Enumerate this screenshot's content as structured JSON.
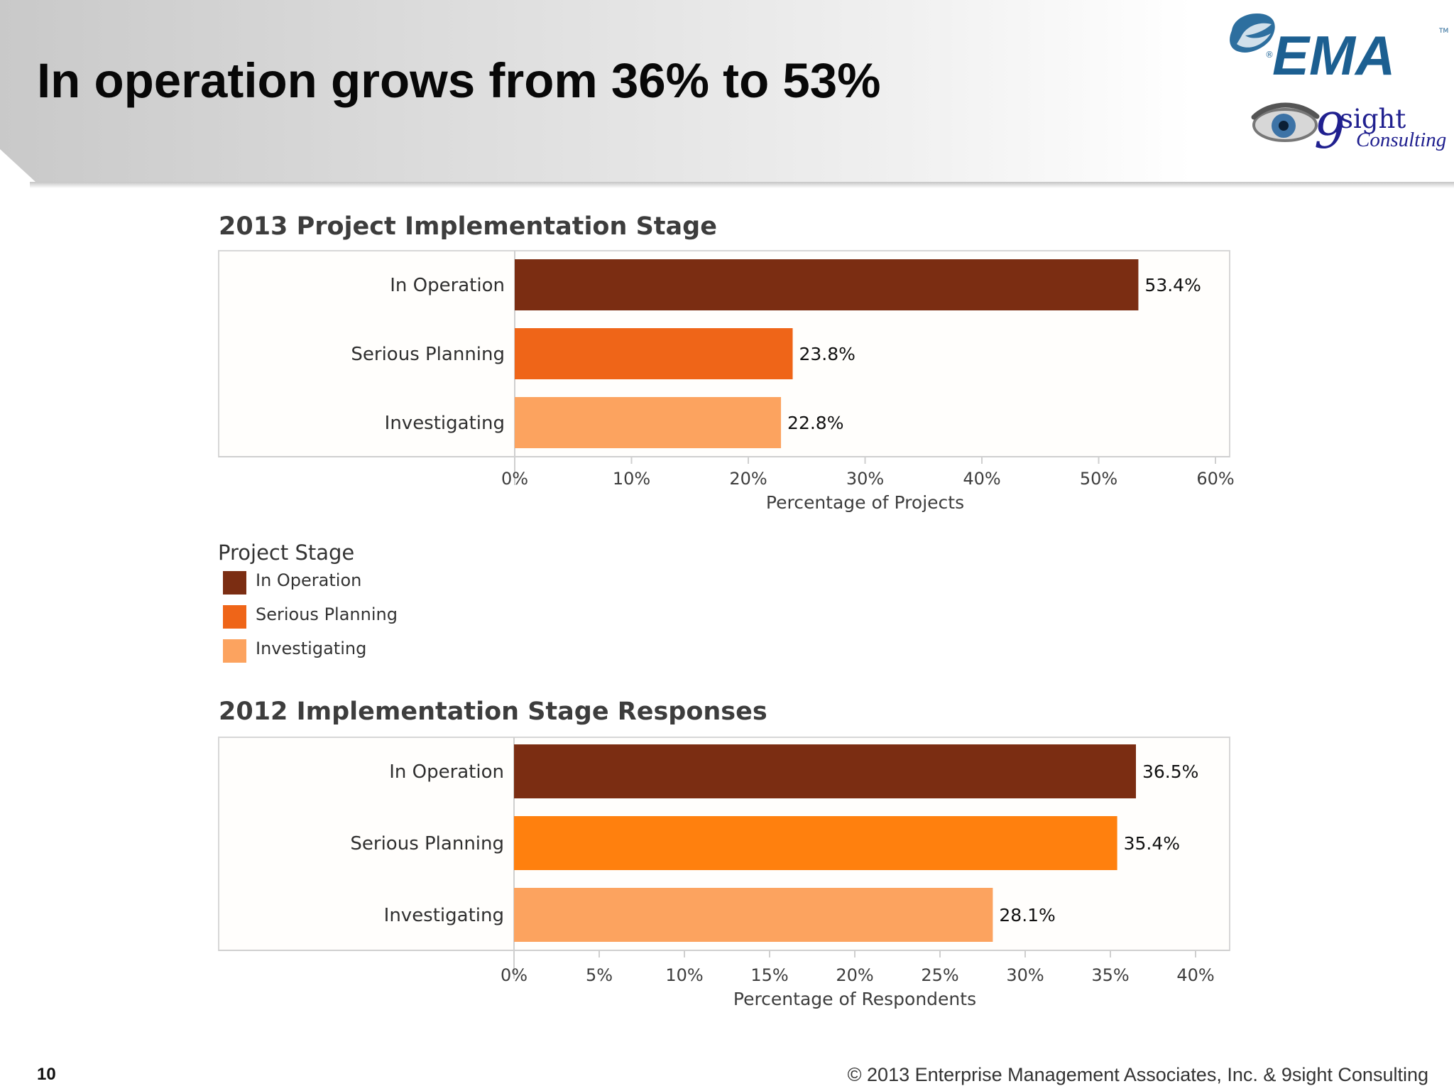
{
  "slide": {
    "title": "In operation grows from 36% to 53%",
    "page_number": "10",
    "copyright": "© 2013 Enterprise Management Associates, Inc. & 9sight Consulting",
    "logos": {
      "ema": "EMA",
      "ema_tm": "TM",
      "nine_sight_number": "9",
      "nine_sight_word": "sight",
      "consulting": "Consulting",
      "registered": "®"
    }
  },
  "legend": {
    "title": "Project Stage",
    "items": [
      {
        "label": "In Operation",
        "color": "#7b2d12"
      },
      {
        "label": "Serious Planning",
        "color": "#ef6518"
      },
      {
        "label": "Investigating",
        "color": "#fca35f"
      }
    ]
  },
  "chart_data": [
    {
      "type": "bar",
      "orientation": "horizontal",
      "title": "2013 Project Implementation Stage",
      "categories": [
        "In Operation",
        "Serious Planning",
        "Investigating"
      ],
      "values": [
        53.4,
        23.8,
        22.8
      ],
      "value_labels": [
        "53.4%",
        "23.8%",
        "22.8%"
      ],
      "colors": [
        "#7b2d12",
        "#ef6518",
        "#fca35f"
      ],
      "xlabel": "Percentage of Projects",
      "ylabel": "",
      "xlim": [
        0,
        60
      ],
      "ticks": [
        0,
        10,
        20,
        30,
        40,
        50,
        60
      ],
      "tick_labels": [
        "0%",
        "10%",
        "20%",
        "30%",
        "40%",
        "50%",
        "60%"
      ],
      "grid": false,
      "legend_placement": "below"
    },
    {
      "type": "bar",
      "orientation": "horizontal",
      "title": "2012 Implementation Stage Responses",
      "categories": [
        "In Operation",
        "Serious Planning",
        "Investigating"
      ],
      "values": [
        36.5,
        35.4,
        28.1
      ],
      "value_labels": [
        "36.5%",
        "35.4%",
        "28.1%"
      ],
      "colors": [
        "#7b2d12",
        "#ff800e",
        "#fca35f"
      ],
      "xlabel": "Percentage of Respondents",
      "ylabel": "",
      "xlim": [
        0,
        40
      ],
      "ticks": [
        0,
        5,
        10,
        15,
        20,
        25,
        30,
        35,
        40
      ],
      "tick_labels": [
        "0%",
        "5%",
        "10%",
        "15%",
        "20%",
        "25%",
        "30%",
        "35%",
        "40%"
      ],
      "grid": false,
      "legend_placement": "none"
    }
  ]
}
